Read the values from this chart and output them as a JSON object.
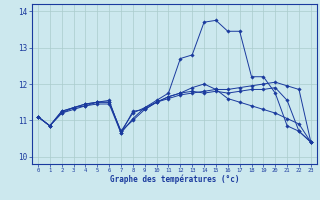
{
  "title": "",
  "xlabel": "Graphe des températures (°c)",
  "background_color": "#cce8ee",
  "grid_color": "#aacccc",
  "line_color": "#1a3a9e",
  "xlim": [
    -0.5,
    23.5
  ],
  "ylim": [
    9.8,
    14.2
  ],
  "yticks": [
    10,
    11,
    12,
    13,
    14
  ],
  "xticks": [
    0,
    1,
    2,
    3,
    4,
    5,
    6,
    7,
    8,
    9,
    10,
    11,
    12,
    13,
    14,
    15,
    16,
    17,
    18,
    19,
    20,
    21,
    22,
    23
  ],
  "series1": [
    11.1,
    10.85,
    11.25,
    11.35,
    11.4,
    11.5,
    11.55,
    10.65,
    11.05,
    11.35,
    11.55,
    11.75,
    12.7,
    12.8,
    13.7,
    13.75,
    13.45,
    13.45,
    12.2,
    12.2,
    11.75,
    10.85,
    10.7,
    10.4
  ],
  "series2": [
    11.1,
    10.85,
    11.2,
    11.35,
    11.45,
    11.5,
    11.5,
    10.7,
    11.0,
    11.3,
    11.5,
    11.65,
    11.75,
    11.8,
    11.75,
    11.8,
    11.75,
    11.8,
    11.85,
    11.85,
    11.9,
    11.55,
    10.7,
    10.4
  ],
  "series3": [
    11.1,
    10.85,
    11.2,
    11.3,
    11.4,
    11.45,
    11.45,
    10.65,
    11.25,
    11.3,
    11.5,
    11.6,
    11.7,
    11.75,
    11.8,
    11.85,
    11.85,
    11.9,
    11.95,
    12.0,
    12.05,
    11.95,
    11.85,
    10.4
  ],
  "series4": [
    11.1,
    10.85,
    11.25,
    11.35,
    11.45,
    11.5,
    11.5,
    10.7,
    11.2,
    11.35,
    11.5,
    11.65,
    11.75,
    11.9,
    12.0,
    11.85,
    11.6,
    11.5,
    11.4,
    11.3,
    11.2,
    11.05,
    10.9,
    10.4
  ]
}
